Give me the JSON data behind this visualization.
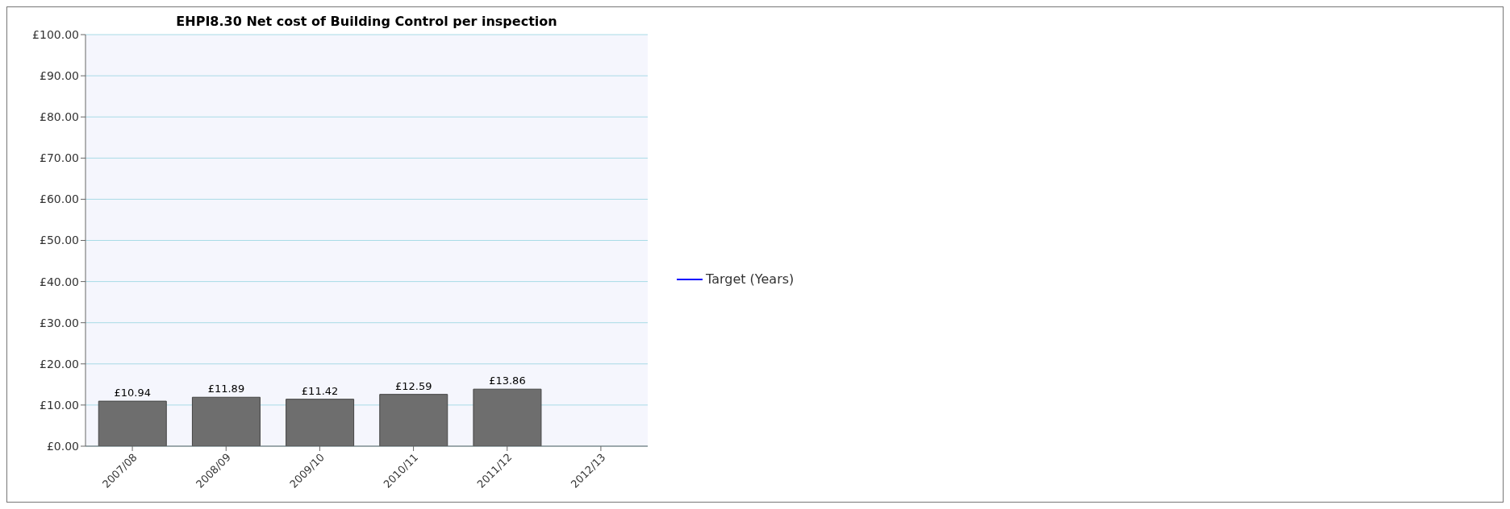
{
  "chart_data": {
    "type": "bar",
    "title": "EHPI8.30 Net cost of Building Control per inspection",
    "categories": [
      "2007/08",
      "2008/09",
      "2009/10",
      "2010/11",
      "2011/12",
      "2012/13"
    ],
    "series": [
      {
        "color": "#6e6e6e",
        "values": [
          10.94,
          11.89,
          11.42,
          12.59,
          13.86,
          null
        ],
        "value_labels": [
          "£10.94",
          "£11.89",
          "£11.42",
          "£12.59",
          "£13.86",
          null
        ]
      },
      {
        "type": "line",
        "name": "Target (Years)",
        "color": "#0000ff",
        "values": [
          null,
          null,
          null,
          null,
          null,
          null
        ]
      }
    ],
    "ylim": [
      0,
      100
    ],
    "yticks": [
      {
        "value": 0,
        "label": "£0.00"
      },
      {
        "value": 10,
        "label": "£10.00"
      },
      {
        "value": 20,
        "label": "£20.00"
      },
      {
        "value": 30,
        "label": "£30.00"
      },
      {
        "value": 40,
        "label": "£40.00"
      },
      {
        "value": 50,
        "label": "£50.00"
      },
      {
        "value": 60,
        "label": "£60.00"
      },
      {
        "value": 70,
        "label": "£70.00"
      },
      {
        "value": 80,
        "label": "£80.00"
      },
      {
        "value": 90,
        "label": "£90.00"
      },
      {
        "value": 100,
        "label": "£100.00"
      }
    ],
    "grid": "y",
    "legend": "right"
  }
}
